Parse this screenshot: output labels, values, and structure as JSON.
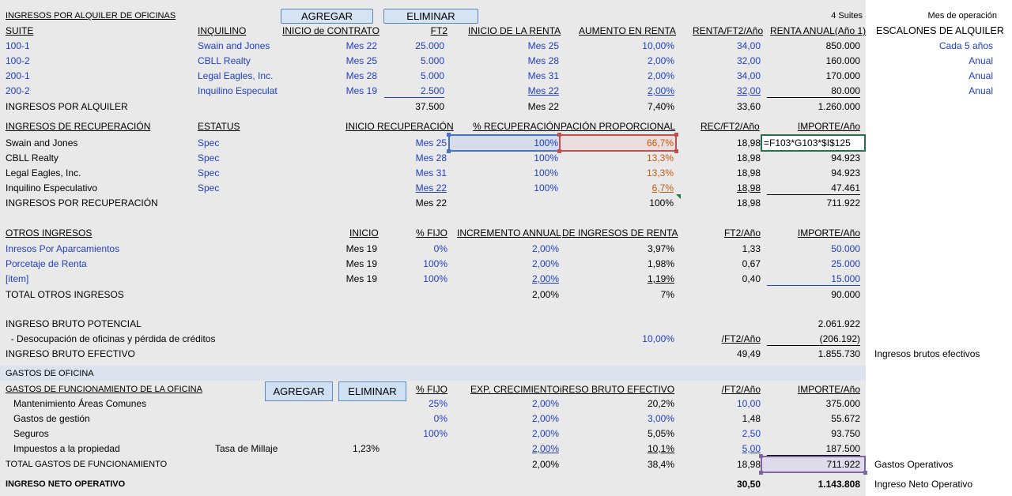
{
  "buttons": {
    "agregar": "AGREGAR",
    "eliminar": "ELIMINAR",
    "agregar2": "AGREGAR",
    "eliminar2": "ELIMINAR"
  },
  "rent": {
    "title": "INGRESOS POR ALQUILER DE OFICINAS",
    "suites_count": "4 Suites",
    "headers": [
      "SUITE",
      "INQUILINO",
      "INICIO de CONTRATO",
      "FT2",
      "INICIO DE LA RENTA",
      "AUMENTO EN RENTA",
      "RENTA/FT2/Año",
      "RENTA ANUAL(Año 1)"
    ],
    "rows": [
      [
        "100-1",
        "Swain and Jones",
        "Mes 22",
        "25.000",
        "Mes 25",
        "10,00%",
        "34,00",
        "850.000"
      ],
      [
        "100-2",
        "CBLL Realty",
        "Mes 25",
        "5.000",
        "Mes 28",
        "2,00%",
        "32,00",
        "160.000"
      ],
      [
        "200-1",
        "Legal Eagles, Inc.",
        "Mes 28",
        "5.000",
        "Mes 31",
        "2,00%",
        "34,00",
        "170.000"
      ],
      [
        "200-2",
        "Inquilino Especulat",
        "Mes 19",
        "2.500",
        "Mes 22",
        "2,00%",
        "32,00",
        "80.000"
      ]
    ],
    "total_label": "INGRESOS POR ALQUILER",
    "total": [
      "37.500",
      "Mes 22",
      "7,40%",
      "33,60",
      "1.260.000"
    ]
  },
  "side": {
    "mes_operacion": "Mes de operación",
    "escalones": "ESCALONES DE ALQUILER",
    "escalones_vals": [
      "Cada 5 años",
      "Anual",
      "Anual",
      "Anual"
    ],
    "ingresos_brutos": "Ingresos brutos efectivos",
    "gastos_operativos": "Gastos Operativos",
    "ingreso_neto": "Ingreso Neto Operativo"
  },
  "recovery": {
    "headers": [
      "INGRESOS DE RECUPERACIÓN",
      "ESTATUS",
      "INICIO RECUPERACIÓN",
      "% RECUPERACIÓN",
      "PACIÓN PROPORCIONAL",
      "REC/FT2/Año",
      "IMPORTE/Año"
    ],
    "rows": [
      [
        "Swain and Jones",
        "Spec",
        "Mes 25",
        "100%",
        "66,7%",
        "18,98",
        "=F103*G103*$I$125"
      ],
      [
        "CBLL Realty",
        "Spec",
        "Mes 28",
        "100%",
        "13,3%",
        "18,98",
        "94.923"
      ],
      [
        "Legal Eagles, Inc.",
        "Spec",
        "Mes 31",
        "100%",
        "13,3%",
        "18,98",
        "94.923"
      ],
      [
        "Inquilino Especulativo",
        "Spec",
        "Mes 22",
        "100%",
        "6,7%",
        "18,98",
        "47.461"
      ]
    ],
    "total_label": "INGRESOS POR RECUPERACIÓN",
    "total": [
      "Mes 22",
      "100%",
      "18,98",
      "711.922"
    ]
  },
  "other": {
    "headers": [
      "OTROS INGRESOS",
      "INICIO",
      "% FIJO",
      "INCREMENTO ANNUAL",
      "DE INGRESOS DE RENTA",
      "FT2/Año",
      "IMPORTE/Año"
    ],
    "rows": [
      [
        "Inresos Por Aparcamientos",
        "Mes 19",
        "0%",
        "2,00%",
        "3,97%",
        "1,33",
        "50.000"
      ],
      [
        "Porcetaje de Renta",
        "Mes 19",
        "100%",
        "2,00%",
        "1,98%",
        "0,67",
        "25.000"
      ],
      [
        "[item]",
        "Mes 19",
        "100%",
        "2,00%",
        "1,19%",
        "0,40",
        "15.000"
      ]
    ],
    "total_label": "TOTAL OTROS INGRESOS",
    "total": [
      "2,00%",
      "7%",
      "90.000"
    ]
  },
  "gross": {
    "potential_label": "INGRESO BRUTO POTENCIAL",
    "potential": "2.061.922",
    "vacancy_label": "  - Desocupación de oficinas y pérdida de créditos",
    "vacancy_pct": "10,00%",
    "vacancy_unit": "/FT2/Año",
    "vacancy": "(206.192)",
    "effective_label": "INGRESO BRUTO EFECTIVO",
    "effective_ft2": "49,49",
    "effective": "1.855.730"
  },
  "expenses": {
    "band": "GASTOS DE OFICINA",
    "headers": [
      "GASTOS DE FUNCIONAMIENTO DE LA OFICINA",
      "% FIJO",
      "EXP. CRECIMIENTO",
      "iRESO BRUTO EFECTIVO",
      "/FT2/Año",
      "IMPORTE/Año"
    ],
    "rows": [
      [
        "Mantenimiento Áreas Comunes",
        "25%",
        "2,00%",
        "20,2%",
        "10,00",
        "375.000"
      ],
      [
        "Gastos de gestión",
        "0%",
        "2,00%",
        "3,00%",
        "1,48",
        "55.672"
      ],
      [
        "Seguros",
        "100%",
        "2,00%",
        "5,05%",
        "2,50",
        "93.750"
      ],
      [
        "Impuestos a la propiedad",
        "",
        "2,00%",
        "10,1%",
        "5,00",
        "187.500"
      ]
    ],
    "millaje_label": "Tasa de Millaje",
    "millaje": "1,23%",
    "total_label": "TOTAL GASTOS DE FUNCIONAMIENTO",
    "total": [
      "2,00%",
      "38,4%",
      "18,98",
      "711.922"
    ],
    "noi_label": "INGRESO NETO OPERATIVO",
    "noi": [
      "30,50",
      "1.143.808"
    ]
  }
}
